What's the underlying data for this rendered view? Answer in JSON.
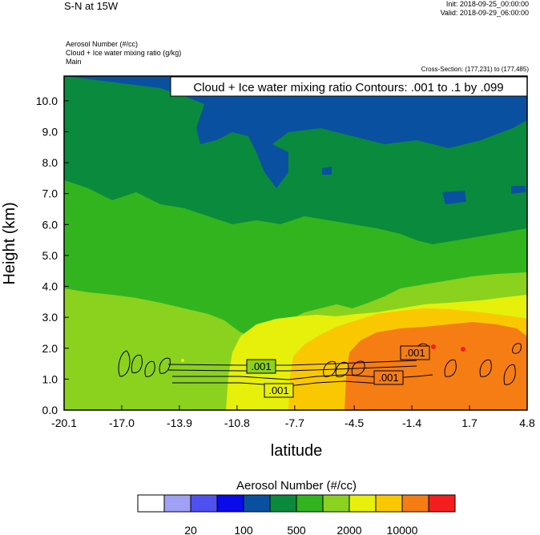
{
  "header": {
    "title": "S-N at 15W",
    "init": "Init: 2018-09-25_00:00:00",
    "valid": "Valid: 2018-09-29_06:00:00",
    "var1": "Aerosol Number   (#/cc)",
    "var2": "Cloud + Ice water mixing ratio   (g/kg)",
    "var3": "Main",
    "cross_section": "Cross-Section: (177,231) to (177,485)"
  },
  "contour_box": "Cloud + Ice water mixing ratio Contours: .001 to .1 by .099",
  "contour_labels": [
    ".001",
    ".001",
    ".001",
    ".001"
  ],
  "chart_data": {
    "type": "heatmap",
    "xlabel": "latitude",
    "ylabel": "Height (km)",
    "xlim": [
      -20.1,
      4.8
    ],
    "ylim": [
      0.0,
      10.8
    ],
    "x_ticks": [
      -20.1,
      -17.0,
      -13.9,
      -10.8,
      -7.7,
      -4.5,
      -1.4,
      1.7,
      4.8
    ],
    "x_tick_labels": [
      "-20.1",
      "-17.0",
      "-13.9",
      "-10.8",
      "-7.7",
      "-4.5",
      "-1.4",
      "1.7",
      "4.8"
    ],
    "y_ticks": [
      0,
      1,
      2,
      3,
      4,
      5,
      6,
      7,
      8,
      9,
      10
    ],
    "y_tick_labels": [
      "0.0",
      "1.0",
      "2.0",
      "3.0",
      "4.0",
      "5.0",
      "6.0",
      "7.0",
      "8.0",
      "9.0",
      "10.0"
    ],
    "grid": false,
    "colorbar": {
      "title": "Aerosol Number  (#/cc)",
      "colors": [
        "#ffffff",
        "#a0a0f5",
        "#5050f0",
        "#0a0aeb",
        "#0a50a0",
        "#0a8a3c",
        "#32b41e",
        "#8ad21e",
        "#e6f00a",
        "#fac800",
        "#f57d14",
        "#f51e1e"
      ],
      "labels": [
        "20",
        "100",
        "500",
        "2000",
        "10000"
      ]
    },
    "regions": [
      {
        "level": 5,
        "color": "#0a8a3c",
        "height_range": [
          6.5,
          10.8
        ],
        "note_lat": [
          -20.1,
          4.8
        ]
      },
      {
        "level": 4,
        "color": "#0a50a0",
        "height_range": [
          8.5,
          10.8
        ],
        "lat_range": [
          -15.0,
          3.5
        ]
      },
      {
        "level": 6,
        "color": "#32b41e",
        "height_range": [
          2.5,
          7.5
        ],
        "lat_range": [
          -20.1,
          4.8
        ]
      },
      {
        "level": 7,
        "color": "#8ad21e",
        "height_range": [
          0.0,
          3.8
        ],
        "lat_range": [
          -20.1,
          4.8
        ]
      },
      {
        "level": 8,
        "color": "#e6f00a",
        "height_range": [
          0.0,
          3.2
        ],
        "lat_range": [
          -11.0,
          4.8
        ]
      },
      {
        "level": 9,
        "color": "#fac800",
        "height_range": [
          0.0,
          3.3
        ],
        "lat_range": [
          -7.2,
          4.8
        ]
      },
      {
        "level": 10,
        "color": "#f57d14",
        "height_range": [
          0.0,
          3.0
        ],
        "lat_range": [
          -3.5,
          4.8
        ]
      }
    ]
  }
}
